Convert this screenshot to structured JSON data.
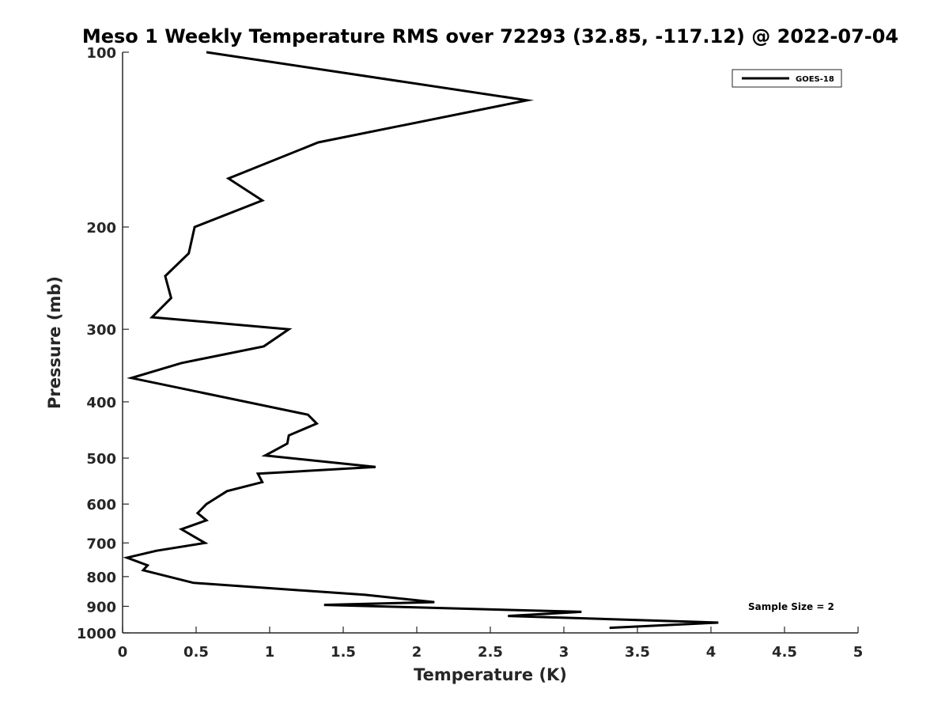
{
  "chart_data": {
    "type": "line",
    "title": "Meso 1 Weekly Temperature RMS over 72293 (32.85, -117.12) @ 2022-07-04",
    "xlabel": "Temperature (K)",
    "ylabel": "Pressure (mb)",
    "xlim": [
      0,
      5
    ],
    "ylim": [
      100,
      1000
    ],
    "y_scale": "log",
    "y_reversed": true,
    "x_ticks": [
      0,
      0.5,
      1,
      1.5,
      2,
      2.5,
      3,
      3.5,
      4,
      4.5,
      5
    ],
    "x_tick_labels": [
      "0",
      "0.5",
      "1",
      "1.5",
      "2",
      "2.5",
      "3",
      "3.5",
      "4",
      "4.5",
      "5"
    ],
    "y_ticks": [
      100,
      200,
      300,
      400,
      500,
      600,
      700,
      800,
      900,
      1000
    ],
    "y_tick_labels": [
      "100",
      "200",
      "300",
      "400",
      "500",
      "600",
      "700",
      "800",
      "900",
      "1000"
    ],
    "grid": false,
    "legend_position": "top-right",
    "annotation": "Sample Size = 2",
    "series": [
      {
        "name": "GOES-18",
        "color": "#000000",
        "x": [
          0.57,
          2.75,
          1.33,
          0.72,
          0.95,
          0.49,
          0.45,
          0.29,
          0.33,
          0.2,
          1.13,
          0.96,
          0.4,
          0.06,
          1.26,
          1.32,
          1.13,
          1.12,
          0.97,
          1.72,
          0.92,
          0.95,
          0.71,
          0.57,
          0.51,
          0.57,
          0.4,
          0.56,
          0.23,
          0.03,
          0.17,
          0.14,
          0.48,
          1.65,
          2.12,
          1.37,
          3.12,
          2.62,
          4.05,
          3.31
        ],
        "y": [
          100,
          121,
          143,
          165,
          180,
          200,
          222,
          243,
          265,
          286,
          300,
          321,
          343,
          364,
          421,
          436,
          457,
          472,
          495,
          518,
          532,
          550,
          570,
          600,
          622,
          640,
          663,
          700,
          722,
          742,
          765,
          780,
          820,
          860,
          885,
          895,
          920,
          935,
          960,
          980
        ]
      }
    ]
  }
}
